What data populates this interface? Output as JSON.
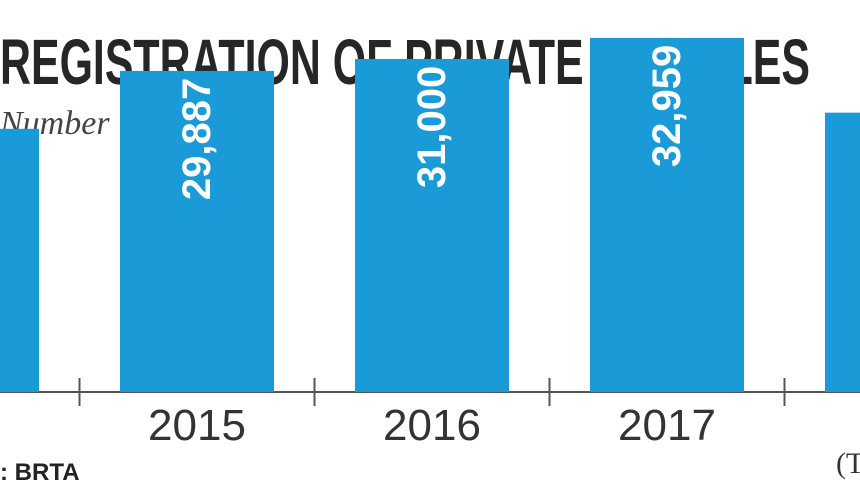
{
  "chart_data": {
    "type": "bar",
    "title": "REGISTRATION OF PRIVATE VEHICLES",
    "subtitle": "Number in units",
    "categories": [
      "",
      "2015",
      "2016",
      "2017",
      ""
    ],
    "values": [
      24500,
      29887,
      31000,
      32959,
      26000
    ],
    "value_labels": [
      "",
      "29,887",
      "31,000",
      "32,959",
      ""
    ],
    "xlabel": "",
    "ylabel": "",
    "ylim": [
      0,
      35000
    ],
    "grid": false,
    "bar_color": "#1a9ad6",
    "axis_color": "#555555"
  },
  "source": ": BRTA",
  "footnote": "(T"
}
